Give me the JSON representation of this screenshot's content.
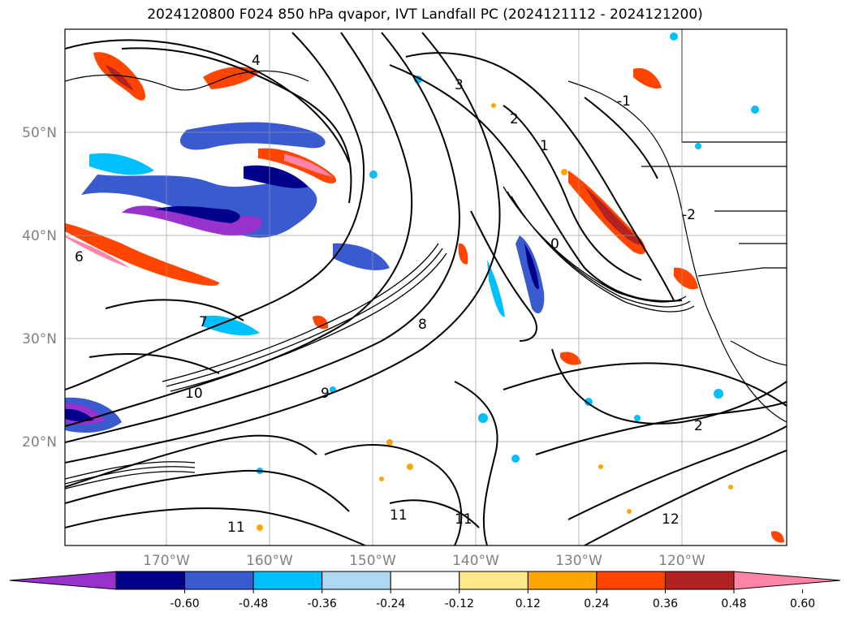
{
  "title": "2024120800 F024 850 hPa qvapor, IVT Landfall PC (2024121112 - 2024121200)",
  "map": {
    "lat_labels": [
      "50°N",
      "40°N",
      "30°N",
      "20°N"
    ],
    "lon_labels": [
      "170°W",
      "160°W",
      "150°W",
      "140°W",
      "130°W",
      "120°W"
    ],
    "gridlines": true,
    "contour_labels": [
      "4",
      "3",
      "2",
      "1",
      "0",
      "-1",
      "-2",
      "6",
      "7",
      "8",
      "9",
      "10",
      "11",
      "12"
    ]
  },
  "colorbar": {
    "extend": "both",
    "ticks": [
      "-0.60",
      "-0.48",
      "-0.36",
      "-0.24",
      "-0.12",
      "0.12",
      "0.24",
      "0.36",
      "0.48",
      "0.60"
    ],
    "colors": [
      "#9932cc",
      "#00008b",
      "#3a5bcf",
      "#00bfff",
      "#add8f0",
      "#ffffff",
      "#ffe88a",
      "#ffa500",
      "#ff4500",
      "#b22222",
      "#ff85a8"
    ]
  }
}
